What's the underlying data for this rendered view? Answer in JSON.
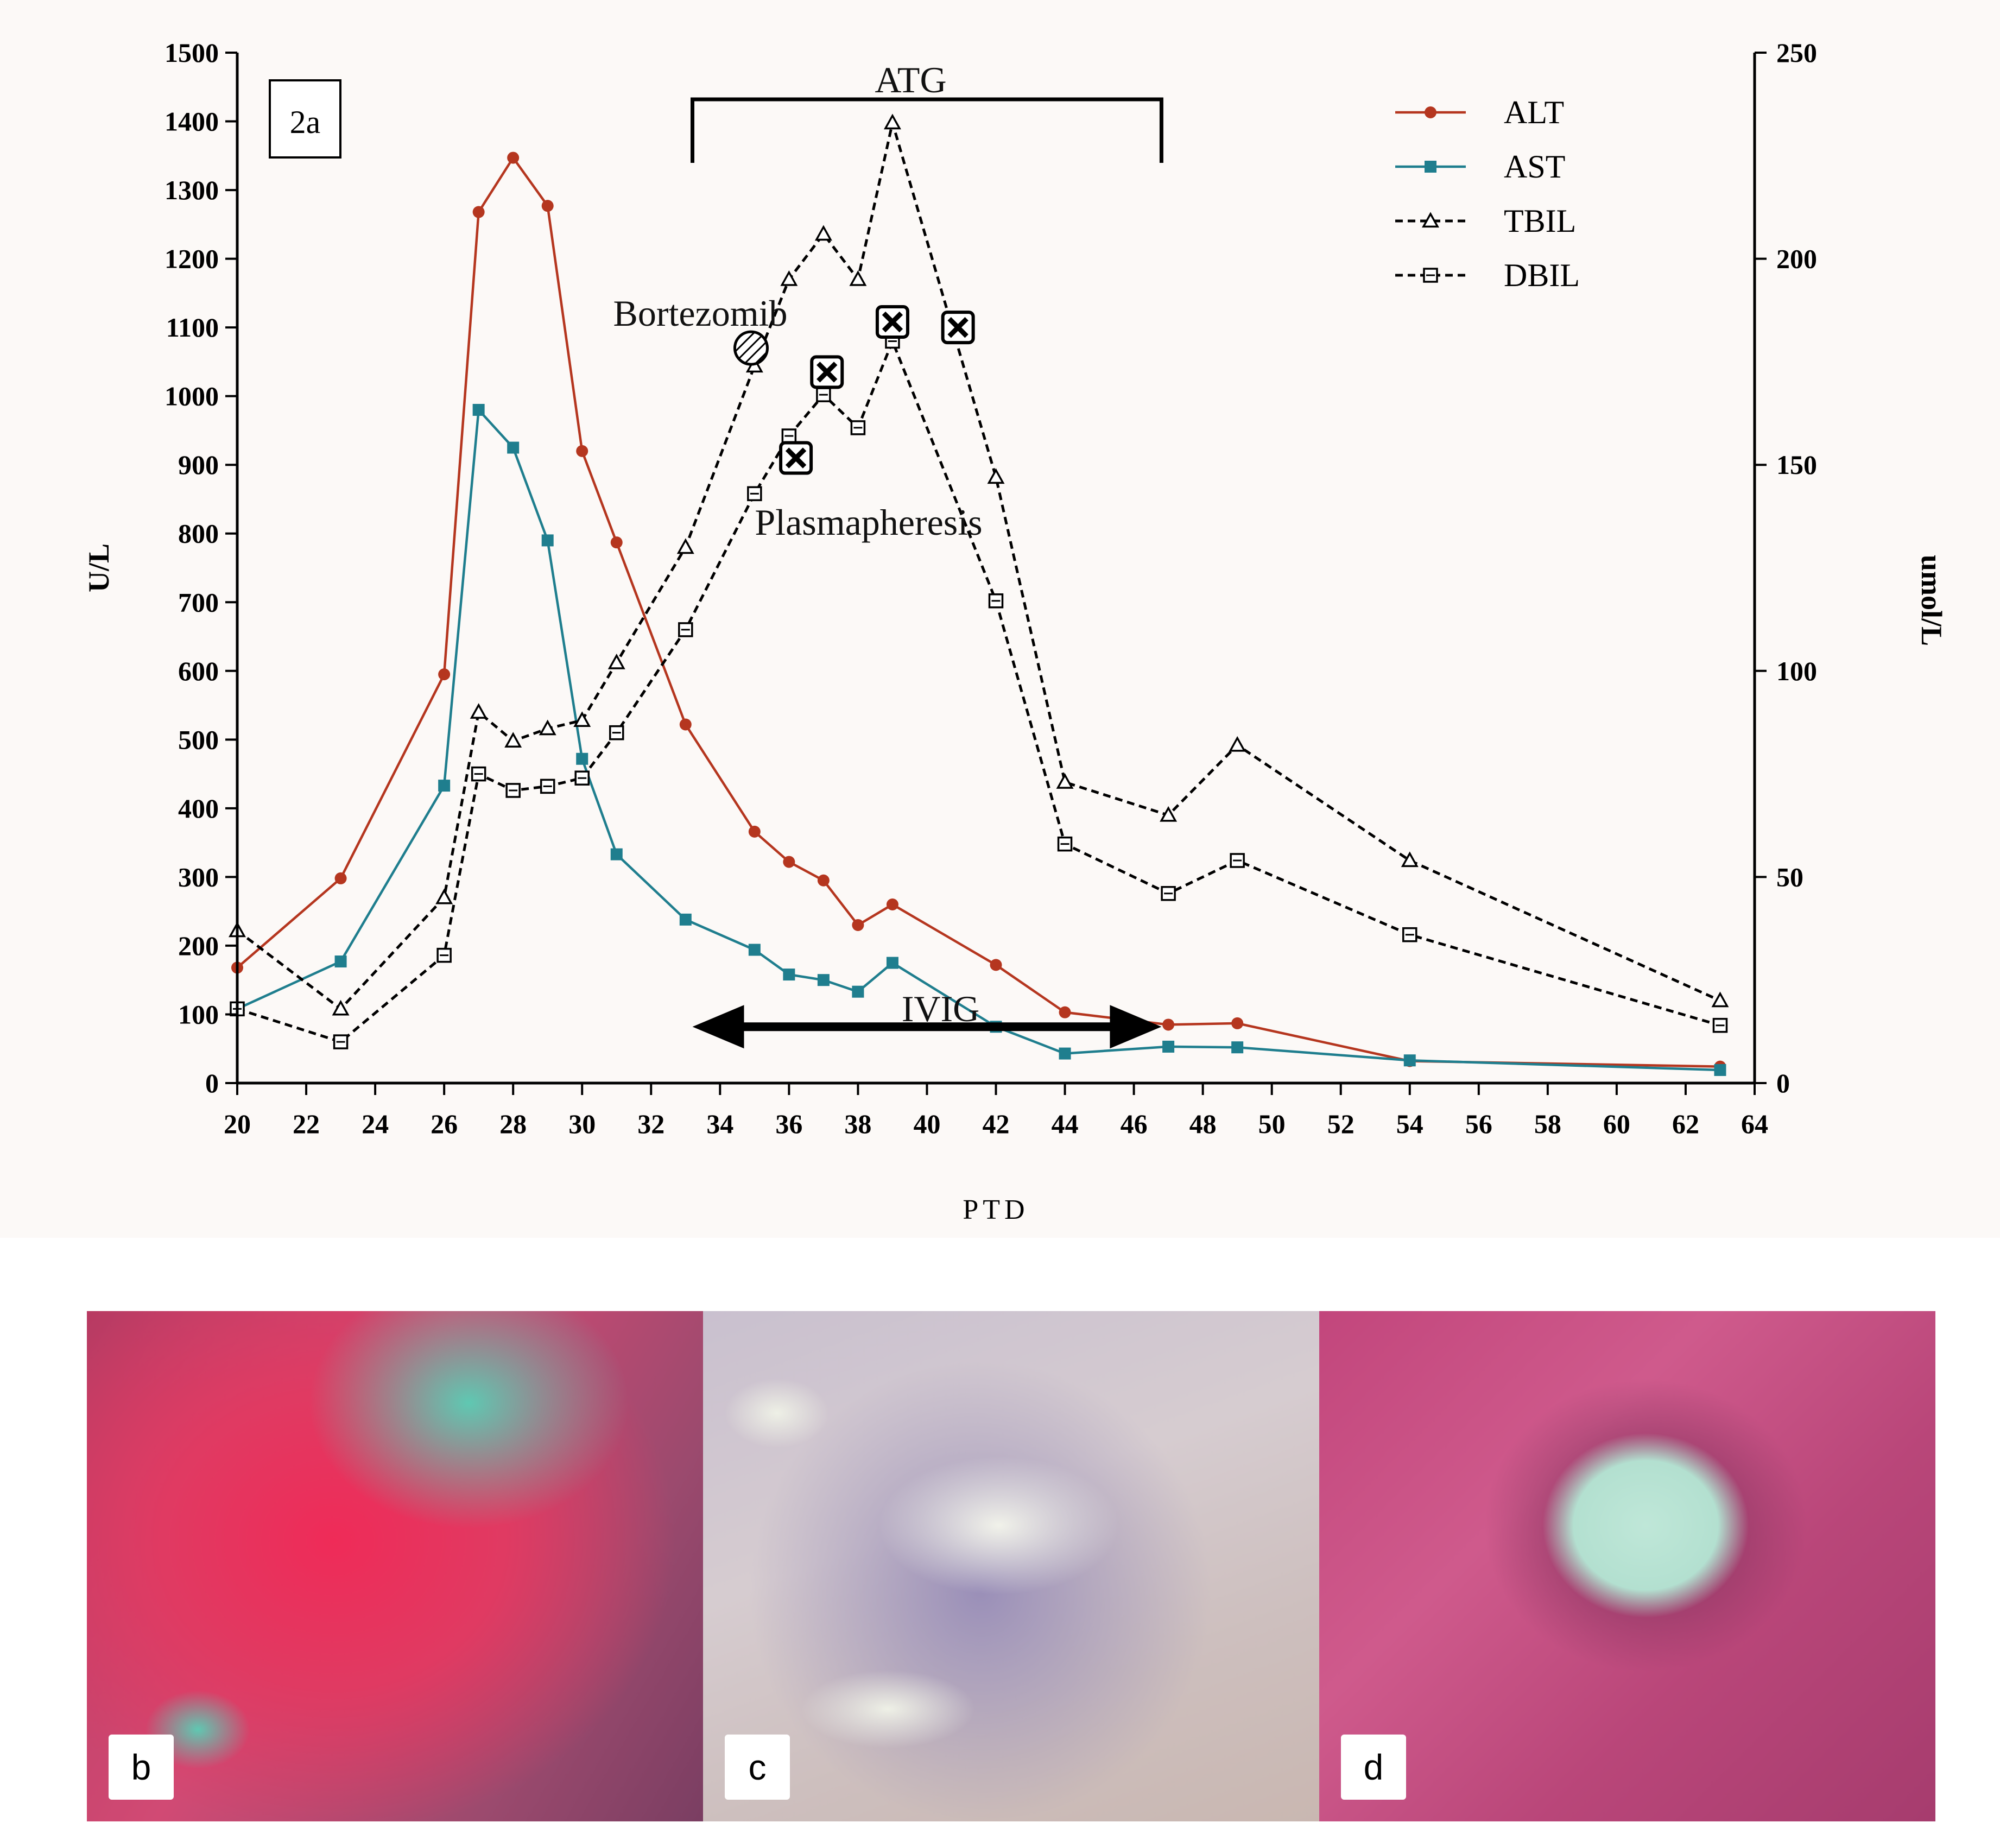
{
  "chart_data": {
    "type": "line",
    "panel_label": "2a",
    "xlabel": "PTD",
    "ylabel_left": "U/L",
    "ylabel_right": "umol/L",
    "xlim": [
      20,
      64
    ],
    "xticks": [
      20,
      22,
      24,
      26,
      28,
      30,
      32,
      34,
      36,
      38,
      40,
      42,
      44,
      46,
      48,
      50,
      52,
      54,
      56,
      58,
      60,
      62,
      64
    ],
    "ylim_left": [
      0,
      1500
    ],
    "yticks_left": [
      0,
      100,
      200,
      300,
      400,
      500,
      600,
      700,
      800,
      900,
      1000,
      1100,
      1200,
      1300,
      1400,
      1500
    ],
    "ylim_right": [
      0,
      250
    ],
    "yticks_right": [
      0,
      50,
      100,
      150,
      200,
      250
    ],
    "legend_position": "top-right",
    "grid": false,
    "series": [
      {
        "name": "ALT",
        "axis": "left",
        "color": "#b5361f",
        "style": "solid",
        "marker": "circle",
        "x": [
          20,
          23,
          26,
          27,
          28,
          29,
          30,
          31,
          33,
          35,
          36,
          37,
          38,
          39,
          42,
          44,
          47,
          49,
          54,
          63
        ],
        "y": [
          168,
          298,
          595,
          1268,
          1347,
          1277,
          920,
          787,
          522,
          366,
          322,
          295,
          230,
          260,
          172,
          103,
          85,
          87,
          32,
          24
        ]
      },
      {
        "name": "AST",
        "axis": "left",
        "color": "#1f7e8e",
        "style": "solid",
        "marker": "square",
        "x": [
          20,
          23,
          26,
          27,
          28,
          29,
          30,
          31,
          33,
          35,
          36,
          37,
          38,
          39,
          42,
          44,
          47,
          49,
          54,
          63
        ],
        "y": [
          108,
          177,
          433,
          980,
          925,
          790,
          472,
          333,
          238,
          194,
          158,
          150,
          133,
          175,
          82,
          43,
          53,
          52,
          33,
          19
        ]
      },
      {
        "name": "TBIL",
        "axis": "right",
        "color": "#000000",
        "style": "dashed",
        "marker": "triangle",
        "x": [
          20,
          23,
          26,
          27,
          28,
          29,
          30,
          31,
          33,
          35,
          36,
          37,
          38,
          39,
          42,
          44,
          47,
          49,
          54,
          63
        ],
        "y": [
          37,
          18,
          45,
          90,
          83,
          86,
          88,
          102,
          130,
          174,
          195,
          206,
          195,
          233,
          147,
          73,
          65,
          82,
          54,
          20
        ]
      },
      {
        "name": "DBIL",
        "axis": "right",
        "color": "#000000",
        "style": "dashed",
        "marker": "open-square",
        "x": [
          20,
          23,
          26,
          27,
          28,
          29,
          30,
          31,
          33,
          35,
          36,
          37,
          38,
          39,
          42,
          44,
          47,
          49,
          54,
          63
        ],
        "y": [
          18,
          10,
          31,
          75,
          71,
          72,
          74,
          85,
          110,
          143,
          157,
          167,
          159,
          180,
          117,
          58,
          46,
          54,
          36,
          14
        ]
      }
    ],
    "annotations": {
      "atg": {
        "label": "ATG",
        "x_start": 33.2,
        "x_end": 46.8
      },
      "ivig": {
        "label": "IVIG",
        "x_start": 33.2,
        "x_end": 46.8,
        "y": 82
      },
      "bortezomib": {
        "label": "Bortezomib",
        "x": 34.9,
        "y": 1070
      },
      "plasmapheresis": {
        "label": "Plasmapheresis",
        "points": [
          {
            "x": 36.2,
            "y": 910
          },
          {
            "x": 37.1,
            "y": 1035
          },
          {
            "x": 39.0,
            "y": 1108
          },
          {
            "x": 40.9,
            "y": 1100
          }
        ]
      }
    }
  },
  "photo_panels": [
    {
      "label": "b"
    },
    {
      "label": "c"
    },
    {
      "label": "d"
    }
  ]
}
